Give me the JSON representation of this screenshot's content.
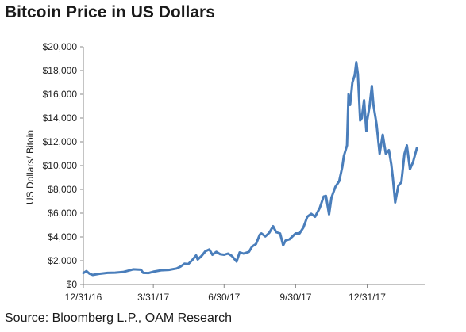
{
  "chart_data": {
    "type": "line",
    "title": "Bitcoin Price in US Dollars",
    "ylabel": "US Dollars/ Bitoin",
    "xlabel": "",
    "source": "Source: Bloomberg L.P., OAM Research",
    "ylim": [
      0,
      20000
    ],
    "yticks": [
      {
        "value": 0,
        "label": "$0"
      },
      {
        "value": 2000,
        "label": "$2,000"
      },
      {
        "value": 4000,
        "label": "$4,000"
      },
      {
        "value": 6000,
        "label": "$6,000"
      },
      {
        "value": 8000,
        "label": "$8,000"
      },
      {
        "value": 10000,
        "label": "$10,000"
      },
      {
        "value": 12000,
        "label": "$12,000"
      },
      {
        "value": 14000,
        "label": "$14,000"
      },
      {
        "value": 16000,
        "label": "$16,000"
      },
      {
        "value": 18000,
        "label": "$18,000"
      },
      {
        "value": 20000,
        "label": "$20,000"
      }
    ],
    "xlim": [
      "2016-12-31",
      "2018-03-15"
    ],
    "xticks": [
      {
        "value": "2016-12-31",
        "label": "12/31/16"
      },
      {
        "value": "2017-03-31",
        "label": "3/31/17"
      },
      {
        "value": "2017-06-30",
        "label": "6/30/17"
      },
      {
        "value": "2017-09-30",
        "label": "9/30/17"
      },
      {
        "value": "2017-12-31",
        "label": "12/31/17"
      }
    ],
    "grid": false,
    "line_color": "#4a7ebb",
    "series": [
      {
        "points": [
          [
            "2016-12-31",
            960
          ],
          [
            "2017-01-04",
            1130
          ],
          [
            "2017-01-08",
            900
          ],
          [
            "2017-01-12",
            800
          ],
          [
            "2017-01-20",
            890
          ],
          [
            "2017-01-31",
            970
          ],
          [
            "2017-02-10",
            990
          ],
          [
            "2017-02-20",
            1050
          ],
          [
            "2017-03-01",
            1190
          ],
          [
            "2017-03-05",
            1270
          ],
          [
            "2017-03-15",
            1240
          ],
          [
            "2017-03-18",
            970
          ],
          [
            "2017-03-25",
            960
          ],
          [
            "2017-03-31",
            1070
          ],
          [
            "2017-04-10",
            1190
          ],
          [
            "2017-04-20",
            1230
          ],
          [
            "2017-04-30",
            1350
          ],
          [
            "2017-05-05",
            1510
          ],
          [
            "2017-05-10",
            1750
          ],
          [
            "2017-05-15",
            1720
          ],
          [
            "2017-05-20",
            2050
          ],
          [
            "2017-05-25",
            2450
          ],
          [
            "2017-05-27",
            2100
          ],
          [
            "2017-06-01",
            2400
          ],
          [
            "2017-06-06",
            2800
          ],
          [
            "2017-06-11",
            2950
          ],
          [
            "2017-06-15",
            2500
          ],
          [
            "2017-06-20",
            2750
          ],
          [
            "2017-06-25",
            2550
          ],
          [
            "2017-06-30",
            2500
          ],
          [
            "2017-07-05",
            2600
          ],
          [
            "2017-07-10",
            2400
          ],
          [
            "2017-07-16",
            1930
          ],
          [
            "2017-07-20",
            2700
          ],
          [
            "2017-07-25",
            2600
          ],
          [
            "2017-08-01",
            2750
          ],
          [
            "2017-08-05",
            3200
          ],
          [
            "2017-08-10",
            3400
          ],
          [
            "2017-08-15",
            4200
          ],
          [
            "2017-08-17",
            4300
          ],
          [
            "2017-08-22",
            4050
          ],
          [
            "2017-08-27",
            4350
          ],
          [
            "2017-09-01",
            4900
          ],
          [
            "2017-09-05",
            4400
          ],
          [
            "2017-09-10",
            4300
          ],
          [
            "2017-09-14",
            3300
          ],
          [
            "2017-09-17",
            3700
          ],
          [
            "2017-09-22",
            3800
          ],
          [
            "2017-09-30",
            4300
          ],
          [
            "2017-10-05",
            4300
          ],
          [
            "2017-10-10",
            4800
          ],
          [
            "2017-10-15",
            5700
          ],
          [
            "2017-10-20",
            5950
          ],
          [
            "2017-10-25",
            5700
          ],
          [
            "2017-10-31",
            6450
          ],
          [
            "2017-11-05",
            7400
          ],
          [
            "2017-11-08",
            7450
          ],
          [
            "2017-11-12",
            5900
          ],
          [
            "2017-11-15",
            7300
          ],
          [
            "2017-11-20",
            8200
          ],
          [
            "2017-11-25",
            8700
          ],
          [
            "2017-11-29",
            9900
          ],
          [
            "2017-12-01",
            10800
          ],
          [
            "2017-12-05",
            11700
          ],
          [
            "2017-12-07",
            16000
          ],
          [
            "2017-12-09",
            15100
          ],
          [
            "2017-12-12",
            17000
          ],
          [
            "2017-12-15",
            17600
          ],
          [
            "2017-12-17",
            18700
          ],
          [
            "2017-12-19",
            17700
          ],
          [
            "2017-12-22",
            13800
          ],
          [
            "2017-12-24",
            14000
          ],
          [
            "2017-12-27",
            15500
          ],
          [
            "2017-12-30",
            12900
          ],
          [
            "2017-12-31",
            13800
          ],
          [
            "2018-01-03",
            15000
          ],
          [
            "2018-01-06",
            16700
          ],
          [
            "2018-01-08",
            15100
          ],
          [
            "2018-01-12",
            13500
          ],
          [
            "2018-01-16",
            11000
          ],
          [
            "2018-01-20",
            12600
          ],
          [
            "2018-01-24",
            11000
          ],
          [
            "2018-01-28",
            11300
          ],
          [
            "2018-01-31",
            10100
          ],
          [
            "2018-02-02",
            9000
          ],
          [
            "2018-02-05",
            6900
          ],
          [
            "2018-02-09",
            8300
          ],
          [
            "2018-02-13",
            8600
          ],
          [
            "2018-02-17",
            11000
          ],
          [
            "2018-02-20",
            11700
          ],
          [
            "2018-02-24",
            9700
          ],
          [
            "2018-02-28",
            10300
          ],
          [
            "2018-03-05",
            11500
          ]
        ]
      }
    ]
  }
}
